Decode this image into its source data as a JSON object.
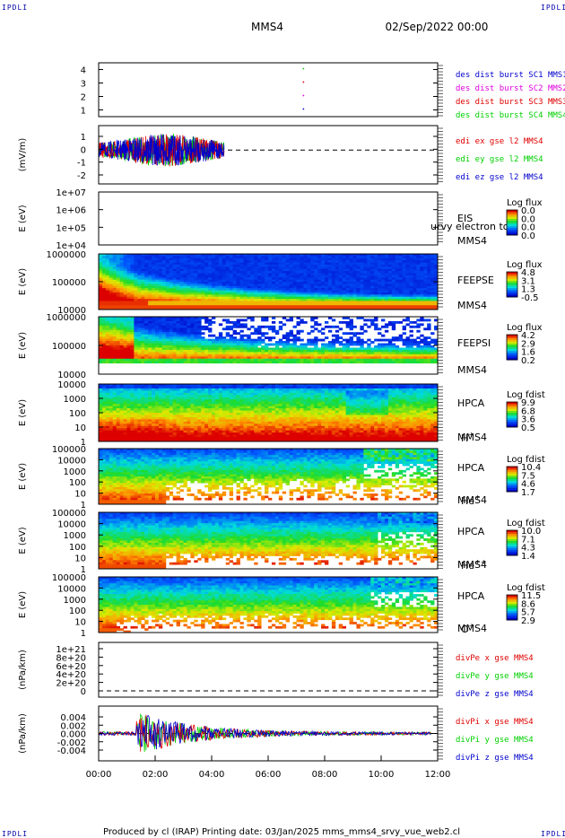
{
  "header": {
    "corner_label": "IPDLI",
    "spacecraft": "MMS4",
    "datetime": "02/Sep/2022 00:00"
  },
  "footer": {
    "text": "Produced by cl (IRAP)   Printing date: 03/Jan/2025   mms_mms4_srvy_vue_web2.cl"
  },
  "colors": {
    "red": "#e00000",
    "green": "#00d000",
    "blue": "#0000cc",
    "magenta": "#e000e0",
    "frame": "#000000"
  },
  "chart_data": {
    "type": "line",
    "x_ticks": [
      "00:00",
      "02:00",
      "04:00",
      "06:00",
      "08:00",
      "10:00",
      "12:00"
    ],
    "panels": [
      {
        "id": "burst",
        "type": "scatter",
        "ylabel": "",
        "yticks": [
          "1",
          "2",
          "3",
          "4"
        ],
        "legend": [
          {
            "text": "des dist burst SC1 MMS1",
            "color": "#0000cc"
          },
          {
            "text": "des dist burst SC2 MMS2",
            "color": "#e000e0"
          },
          {
            "text": "des dist burst SC3 MMS3",
            "color": "#e00000"
          },
          {
            "text": "des dist burst SC4 MMS4",
            "color": "#00d000"
          }
        ],
        "points": [
          {
            "x": "07:15",
            "y": 1,
            "color": "#0000cc"
          },
          {
            "x": "07:15",
            "y": 2,
            "color": "#e000e0"
          },
          {
            "x": "07:15",
            "y": 3,
            "color": "#e00000"
          },
          {
            "x": "07:15",
            "y": 4,
            "color": "#00d000"
          }
        ]
      },
      {
        "id": "edi",
        "type": "line",
        "ylabel": "(mV/m)",
        "yticks": [
          "-2",
          "-1",
          "0",
          "1"
        ],
        "legend": [
          {
            "text": "edi ex gse l2 MMS4",
            "color": "#e00000"
          },
          {
            "text": "edi ey gse l2 MMS4",
            "color": "#00d000"
          },
          {
            "text": "edi ez gse l2 MMS4",
            "color": "#0000cc"
          }
        ]
      },
      {
        "id": "eis",
        "type": "heatmap",
        "ylabel": "E (eV)",
        "yticks": [
          "1e+04",
          "1e+05",
          "1e+06",
          "1e+07"
        ],
        "side_labels": [
          "EIS",
          "MMS4"
        ],
        "overlay_text": "urvy electron to",
        "colorbar_title": "Log flux",
        "colorbar_ticks": [
          "0.0",
          "0.0",
          "0.0",
          "0.0"
        ]
      },
      {
        "id": "feepse",
        "type": "heatmap",
        "ylabel": "E (eV)",
        "yticks": [
          "10000",
          "100000",
          "1000000"
        ],
        "side_labels": [
          "FEEPSE",
          "MMS4"
        ],
        "colorbar_title": "Log flux",
        "colorbar_ticks": [
          "4.8",
          "3.1",
          "1.3",
          "-0.5"
        ]
      },
      {
        "id": "feepsi",
        "type": "heatmap",
        "ylabel": "E (eV)",
        "yticks": [
          "10000",
          "100000",
          "1000000"
        ],
        "side_labels": [
          "FEEPSI",
          "MMS4"
        ],
        "colorbar_title": "Log flux",
        "colorbar_ticks": [
          "4.2",
          "2.9",
          "1.6",
          "0.2"
        ]
      },
      {
        "id": "hpca_h",
        "type": "heatmap",
        "ylabel": "E (eV)",
        "yticks": [
          "1",
          "10",
          "100",
          "1000",
          "10000"
        ],
        "side_labels": [
          "HPCA",
          "MMS4"
        ],
        "species": "H",
        "species_sup": "+",
        "colorbar_title": "Log fdist",
        "colorbar_ticks": [
          "9.9",
          "6.8",
          "3.6",
          "0.5"
        ]
      },
      {
        "id": "hpca_he1",
        "type": "heatmap",
        "ylabel": "E (eV)",
        "yticks": [
          "1",
          "10",
          "100",
          "1000",
          "10000",
          "100000"
        ],
        "side_labels": [
          "HPCA",
          "MMS4"
        ],
        "species": "He",
        "species_sup": "+",
        "colorbar_title": "Log fdist",
        "colorbar_ticks": [
          "10.4",
          "7.5",
          "4.6",
          "1.7"
        ]
      },
      {
        "id": "hpca_he2",
        "type": "heatmap",
        "ylabel": "E (eV)",
        "yticks": [
          "1",
          "10",
          "100",
          "1000",
          "10000",
          "100000"
        ],
        "side_labels": [
          "HPCA",
          "MMS4"
        ],
        "species": "He",
        "species_sup": "++",
        "colorbar_title": "Log fdist",
        "colorbar_ticks": [
          "10.0",
          "7.1",
          "4.3",
          "1.4"
        ]
      },
      {
        "id": "hpca_o",
        "type": "heatmap",
        "ylabel": "E (eV)",
        "yticks": [
          "1",
          "10",
          "100",
          "1000",
          "10000",
          "100000"
        ],
        "side_labels": [
          "HPCA",
          "MMS4"
        ],
        "species": "O",
        "species_sup": "+",
        "colorbar_title": "Log fdist",
        "colorbar_ticks": [
          "11.5",
          "8.6",
          "5.7",
          "2.9"
        ]
      },
      {
        "id": "divpe",
        "type": "line",
        "ylabel": "(nPa/km)",
        "yticks": [
          "0",
          "2e+20",
          "4e+20",
          "6e+20",
          "8e+20",
          "1e+21"
        ],
        "legend": [
          {
            "text": "divPe x gse MMS4",
            "color": "#e00000"
          },
          {
            "text": "divPe y gse MMS4",
            "color": "#00d000"
          },
          {
            "text": "divPe z gse MMS4",
            "color": "#0000cc"
          }
        ]
      },
      {
        "id": "divpi",
        "type": "line",
        "ylabel": "(nPa/km)",
        "yticks": [
          "-0.004",
          "-0.002",
          "0.000",
          "0.002",
          "0.004"
        ],
        "legend": [
          {
            "text": "divPi x gse MMS4",
            "color": "#e00000"
          },
          {
            "text": "divPi y gse MMS4",
            "color": "#00d000"
          },
          {
            "text": "divPi z gse MMS4",
            "color": "#0000cc"
          }
        ]
      }
    ]
  }
}
